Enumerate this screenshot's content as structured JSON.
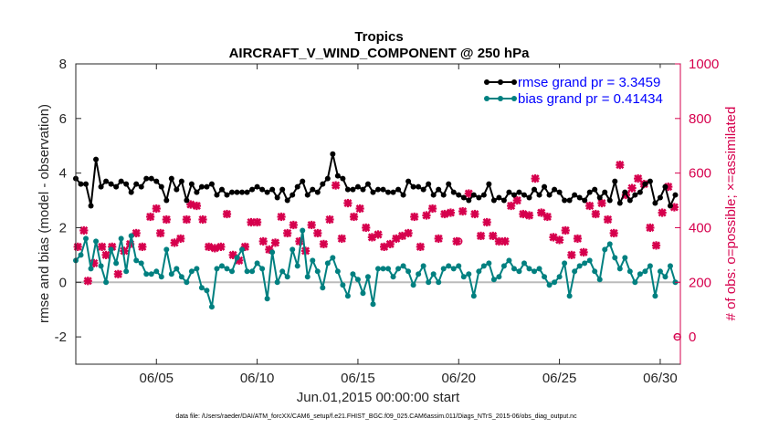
{
  "chart_data": {
    "type": "line",
    "title": "Tropics",
    "subtitle": "AIRCRAFT_V_WIND_COMPONENT @ 250 hPa",
    "xlabel": "Jun.01,2015 00:00:00 start",
    "ylabel_left": "rmse and bias (model - observation)",
    "ylabel_right": "# of obs: o=possible; ×=assimilated",
    "footnote": "data file: /Users/raeder/DAI/ATM_forcXX/CAM6_setup/f.e21.FHIST_BGC.f09_025.CAM6assim.011/Diags_NTrS_2015-06/obs_diag_output.nc",
    "xlim": [
      1,
      31
    ],
    "ylim_left": [
      -3,
      8
    ],
    "ylim_right": [
      -100,
      1000
    ],
    "x_ticks": [
      5,
      10,
      15,
      20,
      25,
      30
    ],
    "x_tick_labels": [
      "06/05",
      "06/10",
      "06/15",
      "06/20",
      "06/25",
      "06/30"
    ],
    "y_left_ticks": [
      -2,
      0,
      2,
      4,
      6,
      8
    ],
    "y_left_tick_labels": [
      "-2",
      "0",
      "2",
      "4",
      "6",
      "8"
    ],
    "y_right_ticks": [
      0,
      200,
      400,
      600,
      800,
      1000
    ],
    "y_right_tick_labels": [
      "0",
      "200",
      "400",
      "600",
      "800",
      "1000"
    ],
    "colors": {
      "rmse": "#000000",
      "bias": "#008080",
      "obs": "#d6004d",
      "zero_line": "#bbbbbb"
    },
    "legend": [
      {
        "name": "rmse",
        "label": "rmse grand pr = 3.3459"
      },
      {
        "name": "bias",
        "label": "bias grand pr = 0.41434"
      }
    ],
    "x": [
      1.0,
      1.25,
      1.5,
      1.75,
      2.0,
      2.25,
      2.5,
      2.75,
      3.0,
      3.25,
      3.5,
      3.75,
      4.0,
      4.25,
      4.5,
      4.75,
      5.0,
      5.25,
      5.5,
      5.75,
      6.0,
      6.25,
      6.5,
      6.75,
      7.0,
      7.25,
      7.5,
      7.75,
      8.0,
      8.25,
      8.5,
      8.75,
      9.0,
      9.25,
      9.5,
      9.75,
      10.0,
      10.25,
      10.5,
      10.75,
      11.0,
      11.25,
      11.5,
      11.75,
      12.0,
      12.25,
      12.5,
      12.75,
      13.0,
      13.25,
      13.5,
      13.75,
      14.0,
      14.25,
      14.5,
      14.75,
      15.0,
      15.25,
      15.5,
      15.75,
      16.0,
      16.25,
      16.5,
      16.75,
      17.0,
      17.25,
      17.5,
      17.75,
      18.0,
      18.25,
      18.5,
      18.75,
      19.0,
      19.25,
      19.5,
      19.75,
      20.0,
      20.25,
      20.5,
      20.75,
      21.0,
      21.25,
      21.5,
      21.75,
      22.0,
      22.25,
      22.5,
      22.75,
      23.0,
      23.25,
      23.5,
      23.75,
      24.0,
      24.25,
      24.5,
      24.75,
      25.0,
      25.25,
      25.5,
      25.75,
      26.0,
      26.25,
      26.5,
      26.75,
      27.0,
      27.25,
      27.5,
      27.75,
      28.0,
      28.25,
      28.5,
      28.75,
      29.0,
      29.25,
      29.5,
      29.75,
      30.0,
      30.25,
      30.5,
      30.75
    ],
    "series": [
      {
        "name": "rmse",
        "axis": "left",
        "values": [
          3.8,
          3.6,
          3.6,
          2.8,
          4.5,
          3.5,
          3.7,
          3.6,
          3.5,
          3.7,
          3.6,
          3.3,
          3.6,
          3.5,
          3.8,
          3.8,
          3.7,
          3.5,
          3.0,
          3.8,
          3.4,
          3.7,
          3.0,
          3.6,
          3.3,
          3.5,
          3.5,
          3.6,
          3.2,
          3.4,
          3.2,
          3.3,
          3.3,
          3.3,
          3.3,
          3.4,
          3.5,
          3.4,
          3.3,
          3.4,
          3.1,
          3.4,
          3.0,
          3.2,
          3.5,
          3.7,
          3.2,
          3.4,
          3.3,
          3.6,
          3.8,
          4.7,
          3.9,
          3.8,
          3.4,
          3.4,
          3.5,
          3.4,
          3.6,
          3.3,
          3.4,
          3.4,
          3.3,
          3.3,
          3.4,
          3.2,
          3.7,
          3.5,
          3.5,
          3.4,
          3.6,
          3.2,
          3.4,
          3.2,
          3.6,
          3.3,
          3.2,
          3.1,
          3.0,
          3.2,
          3.1,
          3.2,
          3.6,
          3.0,
          3.1,
          3.0,
          3.3,
          3.2,
          3.3,
          3.2,
          3.1,
          3.4,
          3.2,
          3.5,
          3.2,
          3.4,
          3.3,
          3.0,
          3.0,
          3.2,
          3.1,
          3.0,
          3.3,
          3.4,
          3.1,
          3.3,
          3.0,
          3.7,
          2.9,
          3.3,
          3.0,
          3.2,
          3.3,
          3.6,
          3.7,
          2.9,
          3.1,
          3.5,
          2.8,
          3.2
        ]
      },
      {
        "name": "bias",
        "axis": "left",
        "values": [
          0.8,
          1.0,
          1.6,
          0.5,
          1.5,
          0.6,
          0.0,
          1.2,
          0.7,
          1.6,
          0.4,
          1.7,
          0.8,
          0.7,
          0.3,
          0.3,
          0.4,
          0.2,
          1.2,
          0.3,
          0.5,
          0.2,
          0.0,
          0.4,
          0.5,
          -0.2,
          -0.3,
          -0.9,
          0.5,
          0.6,
          0.5,
          0.4,
          0.9,
          1.2,
          0.4,
          0.4,
          0.7,
          0.5,
          -0.6,
          1.1,
          0.0,
          0.4,
          0.2,
          1.2,
          0.6,
          1.9,
          0.2,
          0.8,
          0.4,
          -0.2,
          0.7,
          0.9,
          0.4,
          -0.1,
          -0.5,
          0.3,
          0.1,
          -0.4,
          0.2,
          -0.8,
          0.5,
          0.5,
          0.5,
          0.2,
          0.5,
          0.6,
          0.4,
          -0.1,
          0.3,
          0.6,
          0.0,
          0.3,
          0.0,
          0.5,
          0.6,
          0.5,
          0.6,
          0.2,
          0.3,
          -0.5,
          0.4,
          0.6,
          0.7,
          0.1,
          0.2,
          0.6,
          0.8,
          0.5,
          0.4,
          0.7,
          0.5,
          0.4,
          0.5,
          0.2,
          -0.1,
          0.0,
          0.2,
          0.7,
          -0.5,
          0.4,
          0.6,
          0.7,
          0.8,
          0.4,
          0.1,
          1.2,
          1.4,
          0.9,
          0.5,
          0.9,
          0.4,
          0.0,
          0.3,
          0.4,
          0.6,
          -0.5,
          0.4,
          0.2,
          0.6,
          0.0
        ]
      },
      {
        "name": "obs_assimilated",
        "axis": "right",
        "x": [
          1.1,
          1.4,
          1.6,
          1.9,
          2.3,
          2.5,
          2.8,
          3.1,
          3.4,
          3.7,
          4.0,
          4.3,
          4.7,
          5.0,
          5.2,
          5.5,
          5.9,
          6.2,
          6.5,
          6.7,
          7.0,
          7.3,
          7.6,
          7.9,
          8.2,
          8.5,
          8.8,
          9.1,
          9.4,
          9.7,
          10.0,
          10.3,
          10.6,
          10.9,
          11.2,
          11.5,
          11.8,
          12.1,
          12.4,
          12.7,
          13.0,
          13.3,
          13.6,
          13.9,
          14.2,
          14.5,
          14.8,
          15.1,
          15.4,
          15.7,
          16.0,
          16.3,
          16.6,
          16.9,
          17.2,
          17.5,
          17.8,
          18.1,
          18.4,
          18.7,
          19.0,
          19.3,
          19.6,
          19.9,
          20.2,
          20.5,
          20.8,
          21.1,
          21.4,
          21.7,
          22.0,
          22.3,
          22.6,
          22.9,
          23.2,
          23.5,
          23.8,
          24.1,
          24.4,
          24.7,
          25.0,
          25.3,
          25.6,
          25.9,
          26.2,
          26.5,
          26.8,
          27.1,
          27.4,
          27.7,
          28.0,
          28.3,
          28.6,
          28.9,
          29.2,
          29.5,
          29.8,
          30.1,
          30.4,
          30.7
        ],
        "values": [
          330,
          390,
          205,
          270,
          330,
          300,
          330,
          230,
          315,
          340,
          380,
          330,
          440,
          470,
          380,
          430,
          345,
          360,
          430,
          485,
          480,
          430,
          330,
          325,
          330,
          450,
          300,
          280,
          330,
          420,
          420,
          350,
          320,
          345,
          440,
          380,
          410,
          350,
          315,
          410,
          380,
          340,
          430,
          555,
          360,
          490,
          440,
          470,
          400,
          365,
          375,
          330,
          340,
          360,
          370,
          380,
          440,
          330,
          445,
          470,
          360,
          450,
          455,
          350,
          460,
          525,
          450,
          370,
          420,
          370,
          350,
          350,
          480,
          500,
          450,
          445,
          580,
          455,
          440,
          365,
          355,
          390,
          300,
          360,
          310,
          480,
          450,
          490,
          430,
          380,
          630,
          520,
          545,
          580,
          560,
          400,
          335,
          455,
          550,
          475
        ]
      },
      {
        "name": "obs_possible",
        "axis": "right",
        "x": [
          20.0,
          30.85
        ],
        "values": [
          350,
          0
        ]
      }
    ]
  }
}
